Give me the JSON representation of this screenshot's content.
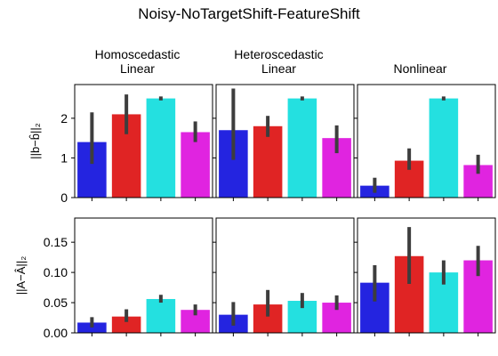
{
  "figure": {
    "title": "Noisy-NoTargetShift-FeatureShift",
    "columns": [
      {
        "line1": "Homoscedastic",
        "line2": "Linear"
      },
      {
        "line1": "Heteroscedastic",
        "line2": "Linear"
      },
      {
        "line1": "Nonlinear",
        "line2": ""
      }
    ]
  },
  "colors": {
    "bar1": "#2424e0",
    "bar2": "#e02424",
    "bar3": "#24e0e0",
    "bar4": "#e024e0",
    "errorbar": "#3d3d3d"
  },
  "chart_data": [
    {
      "type": "bar",
      "panel": "top-left",
      "title": "Homoscedastic Linear",
      "ylabel": "||b−b̂||₂",
      "ylim": [
        0,
        2.85
      ],
      "yticks": [
        "0",
        "1",
        "2"
      ],
      "values": [
        1.4,
        2.1,
        2.5,
        1.65
      ],
      "errors": [
        [
          0.85,
          2.15
        ],
        [
          1.6,
          2.6
        ],
        [
          2.45,
          2.55
        ],
        [
          1.4,
          1.92
        ]
      ]
    },
    {
      "type": "bar",
      "panel": "top-middle",
      "title": "Heteroscedastic Linear",
      "ylim": [
        0,
        2.85
      ],
      "values": [
        1.7,
        1.8,
        2.5,
        1.5
      ],
      "errors": [
        [
          0.95,
          2.75
        ],
        [
          1.53,
          2.06
        ],
        [
          2.45,
          2.55
        ],
        [
          1.12,
          1.82
        ]
      ]
    },
    {
      "type": "bar",
      "panel": "top-right",
      "title": "Nonlinear",
      "ylim": [
        0,
        2.85
      ],
      "values": [
        0.3,
        0.93,
        2.5,
        0.82
      ],
      "errors": [
        [
          0.12,
          0.5
        ],
        [
          0.7,
          1.24
        ],
        [
          2.45,
          2.55
        ],
        [
          0.6,
          1.08
        ]
      ]
    },
    {
      "type": "bar",
      "panel": "bottom-left",
      "ylabel": "||A−Â||₂",
      "ylim": [
        0,
        0.19
      ],
      "yticks": [
        "0.00",
        "0.05",
        "0.10",
        "0.15"
      ],
      "values": [
        0.017,
        0.027,
        0.056,
        0.038
      ],
      "errors": [
        [
          0.009,
          0.026
        ],
        [
          0.018,
          0.039
        ],
        [
          0.05,
          0.063
        ],
        [
          0.029,
          0.047
        ]
      ]
    },
    {
      "type": "bar",
      "panel": "bottom-middle",
      "ylim": [
        0,
        0.19
      ],
      "values": [
        0.03,
        0.047,
        0.053,
        0.05
      ],
      "errors": [
        [
          0.012,
          0.051
        ],
        [
          0.027,
          0.071
        ],
        [
          0.041,
          0.066
        ],
        [
          0.038,
          0.062
        ]
      ]
    },
    {
      "type": "bar",
      "panel": "bottom-right",
      "ylim": [
        0,
        0.19
      ],
      "values": [
        0.083,
        0.127,
        0.1,
        0.12
      ],
      "errors": [
        [
          0.052,
          0.112
        ],
        [
          0.081,
          0.175
        ],
        [
          0.08,
          0.12
        ],
        [
          0.094,
          0.144
        ]
      ]
    }
  ]
}
